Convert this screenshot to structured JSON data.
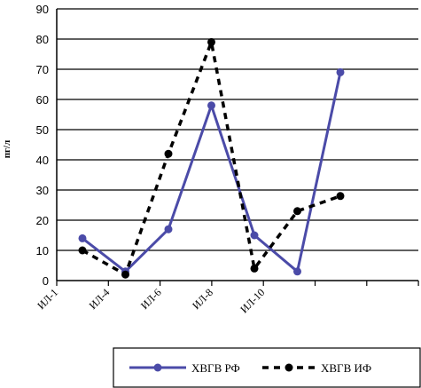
{
  "chart_data": {
    "type": "line",
    "title": "",
    "xlabel": "",
    "ylabel": "пг/л",
    "ylim": [
      0,
      90
    ],
    "yticks": [
      0,
      10,
      20,
      30,
      40,
      50,
      60,
      70,
      80,
      90
    ],
    "grid": true,
    "legend_position": "bottom-right",
    "categories": [
      "ИЛ-1",
      "ИЛ-4",
      "ИЛ-6",
      "ИЛ-8",
      "ИЛ-10",
      "",
      ""
    ],
    "series": [
      {
        "name": "ХВГВ РФ",
        "style": "solid",
        "color": "#4b4ba8",
        "values": [
          14,
          3,
          17,
          58,
          15,
          3,
          69
        ]
      },
      {
        "name": "ХВГВ ИФ",
        "style": "dashed",
        "color": "#000000",
        "values": [
          10,
          2,
          42,
          79,
          4,
          23,
          28
        ]
      }
    ]
  }
}
